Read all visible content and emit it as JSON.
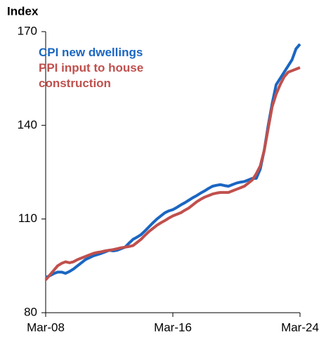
{
  "chart_data": {
    "type": "line",
    "ylabel": "Index",
    "categories": [
      "Mar-08",
      null,
      null,
      null,
      null,
      null,
      null,
      null,
      null,
      null,
      null,
      null,
      null,
      null,
      null,
      null,
      null,
      null,
      null,
      null,
      null,
      null,
      null,
      null,
      null,
      null,
      null,
      null,
      null,
      null,
      null,
      null,
      "Mar-16",
      null,
      null,
      null,
      null,
      null,
      null,
      null,
      null,
      null,
      null,
      null,
      null,
      null,
      null,
      null,
      null,
      null,
      null,
      null,
      null,
      null,
      null,
      null,
      null,
      null,
      null,
      null,
      null,
      null,
      null,
      null,
      "Mar-24"
    ],
    "series": [
      {
        "name": "CPI new dwellings",
        "color": "#1a66c2",
        "values": [
          91.3,
          91.8,
          92.5,
          93,
          93,
          92.6,
          93.2,
          94,
          95,
          96,
          97,
          97.6,
          98.2,
          98.6,
          99,
          99.5,
          100,
          99.8,
          100,
          100.5,
          101,
          102.3,
          103.5,
          104.2,
          105,
          106.2,
          107.5,
          108.8,
          110,
          111,
          112,
          112.6,
          113,
          113.7,
          114.5,
          115.2,
          116,
          116.8,
          117.5,
          118.3,
          119,
          119.8,
          120.5,
          120.8,
          121,
          120.7,
          120.5,
          121,
          121.5,
          121.8,
          122,
          122.5,
          123,
          123,
          126,
          132,
          140,
          147,
          153,
          155,
          157,
          159,
          161,
          164.5,
          166
        ]
      },
      {
        "name": "PPI input to house construction",
        "color": "#c0504d",
        "values": [
          90.5,
          92,
          93.5,
          95,
          95.8,
          96.3,
          96,
          96.3,
          97,
          97.5,
          98,
          98.5,
          99,
          99.3,
          99.5,
          99.8,
          100,
          100.2,
          100.5,
          100.8,
          101,
          101.2,
          101.5,
          102.5,
          103.5,
          104.8,
          106,
          107,
          108,
          108.8,
          109.5,
          110.3,
          111,
          111.5,
          112,
          112.8,
          113.5,
          114.5,
          115.5,
          116.3,
          117,
          117.5,
          118,
          118.3,
          118.5,
          118.5,
          118.5,
          119,
          119.5,
          120,
          120.5,
          121.5,
          122.5,
          124.5,
          127,
          132,
          139,
          146,
          150,
          153,
          155.5,
          157,
          157.5,
          158,
          158.5
        ]
      }
    ],
    "ylim": [
      80,
      170
    ],
    "yticks": [
      80,
      110,
      140,
      170
    ]
  }
}
